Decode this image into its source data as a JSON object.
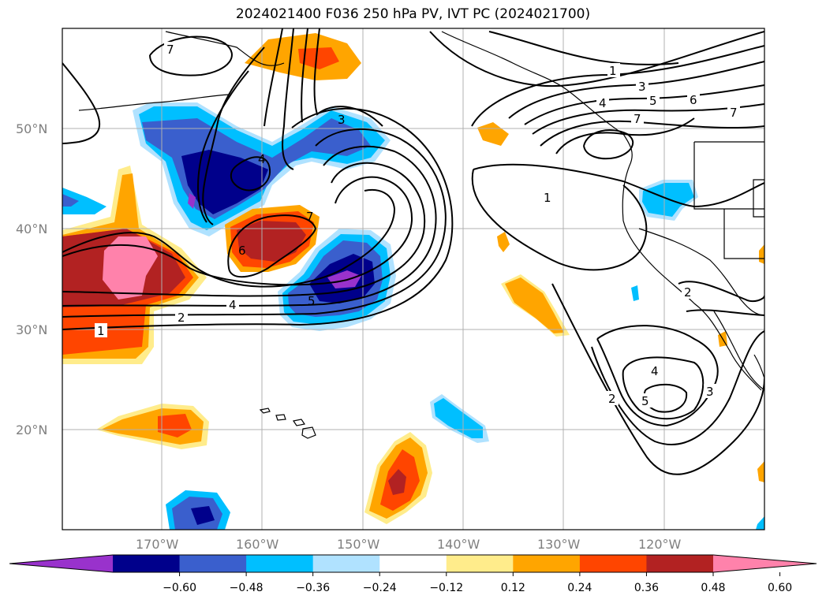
{
  "title": "2024021400 F036 250 hPa PV, IVT PC (2024021700)",
  "latitude_labels": [
    "50°N",
    "40°N",
    "30°N",
    "20°N"
  ],
  "longitude_labels": [
    "170°W",
    "160°W",
    "150°W",
    "140°W",
    "130°W",
    "120°W"
  ],
  "colorbar": {
    "tick_labels": [
      "−0.60",
      "−0.48",
      "−0.36",
      "−0.24",
      "−0.12",
      "0.12",
      "0.24",
      "0.36",
      "0.48",
      "0.60"
    ],
    "colors": [
      "#9932cc",
      "#00008b",
      "#3a5fcd",
      "#00bfff",
      "#b0e2ff",
      "#ffffff",
      "#ffec8b",
      "#ffa500",
      "#ff4500",
      "#b22222",
      "#ff82ab"
    ]
  },
  "contour_labels": {
    "west_jet": [
      "1",
      "2",
      "4",
      "5",
      "3",
      "4",
      "7",
      "6",
      "7"
    ],
    "east_ridge": [
      "1",
      "3",
      "4",
      "5",
      "6",
      "7",
      "7",
      "1"
    ],
    "south_east": [
      "2",
      "4",
      "5",
      "3",
      "2"
    ]
  },
  "colors": {
    "grid": "#b0b0b0",
    "contour": "#000000",
    "coast": "#000000"
  }
}
